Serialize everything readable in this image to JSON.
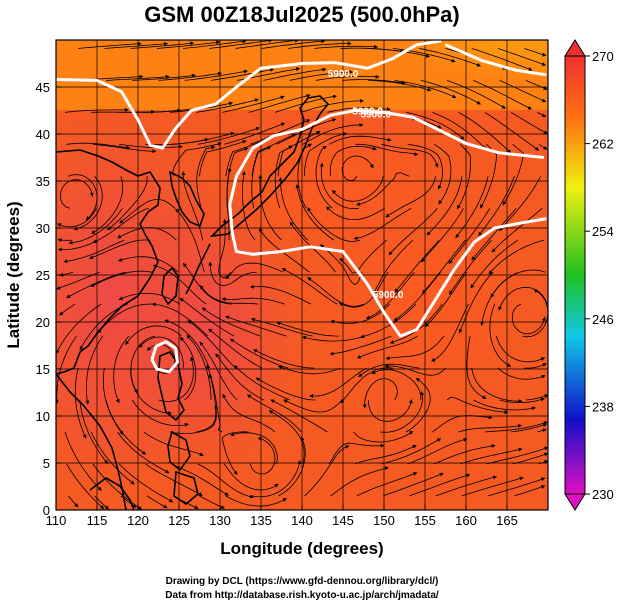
{
  "chart_data": {
    "type": "heatmap",
    "title": "GSM 00Z18Jul2025 (500.0hPa)",
    "xlabel": "Longitude (degrees)",
    "ylabel": "Latitude  (degrees)",
    "xlim": [
      110,
      170
    ],
    "ylim": [
      0,
      50
    ],
    "xticks": [
      110,
      115,
      120,
      125,
      130,
      135,
      140,
      145,
      150,
      155,
      160,
      165
    ],
    "yticks": [
      0,
      5,
      10,
      15,
      20,
      25,
      30,
      35,
      40,
      45
    ],
    "colorbar": {
      "ticks": [
        230,
        238,
        246,
        254,
        262,
        270
      ],
      "range": [
        230,
        270
      ],
      "colors": [
        "#e010c0",
        "#1010c8",
        "#10c8e8",
        "#20c020",
        "#f0f010",
        "#ff7010",
        "#ee3030"
      ]
    },
    "contours": [
      {
        "label": "5900.0",
        "label_pos": [
          145,
          46.5
        ],
        "points": [
          [
            110,
            45.8
          ],
          [
            115,
            45.7
          ],
          [
            118,
            44.5
          ],
          [
            120,
            41.5
          ],
          [
            121.5,
            38.8
          ],
          [
            123,
            38.5
          ],
          [
            124.5,
            40.5
          ],
          [
            126.5,
            42.5
          ],
          [
            129.5,
            43.2
          ],
          [
            132,
            45
          ],
          [
            135,
            47
          ],
          [
            140,
            47.5
          ],
          [
            144,
            47.6
          ],
          [
            148,
            47
          ],
          [
            151,
            48
          ],
          [
            154,
            49.5
          ],
          [
            157,
            49.9
          ]
        ]
      },
      {
        "label": "5900.0",
        "label_pos": [
          149,
          42.2
        ],
        "points": [
          [
            157.5,
            49.5
          ],
          [
            162,
            47.8
          ],
          [
            166,
            46.8
          ],
          [
            169.8,
            46.3
          ]
        ]
      },
      {
        "label": "5900.0",
        "label_pos": [
          148,
          42.5
        ],
        "points": [
          [
            131.5,
            29.5
          ],
          [
            131.2,
            32.5
          ],
          [
            132,
            35.5
          ],
          [
            134,
            38.5
          ],
          [
            136.5,
            39.8
          ],
          [
            140,
            40.5
          ],
          [
            143.5,
            42
          ],
          [
            146.5,
            42.5
          ],
          [
            150,
            42.3
          ],
          [
            153.5,
            41.8
          ],
          [
            157,
            40.3
          ],
          [
            160,
            39
          ],
          [
            164,
            38
          ],
          [
            169.5,
            37.5
          ]
        ]
      },
      {
        "label": "5900.0",
        "label_pos": [
          150.5,
          23
        ],
        "points": [
          [
            131.5,
            29.5
          ],
          [
            132,
            27.5
          ],
          [
            134,
            27.2
          ],
          [
            137.5,
            27.5
          ],
          [
            141,
            28
          ],
          [
            145,
            27.5
          ],
          [
            148,
            24
          ],
          [
            150,
            21
          ],
          [
            152,
            18.5
          ],
          [
            154,
            19.2
          ],
          [
            156,
            22
          ],
          [
            158.5,
            25.5
          ],
          [
            161,
            28.5
          ],
          [
            163.5,
            30
          ],
          [
            166.5,
            30.5
          ],
          [
            169.8,
            31
          ]
        ]
      },
      {
        "label": "",
        "label_pos": null,
        "points": [
          [
            121.7,
            16
          ],
          [
            122.2,
            17.4
          ],
          [
            123.4,
            17.9
          ],
          [
            124.6,
            17.2
          ],
          [
            124.8,
            15.7
          ],
          [
            123.8,
            14.7
          ],
          [
            122.3,
            15
          ],
          [
            121.7,
            16
          ]
        ]
      }
    ]
  },
  "credits": {
    "line1": "Drawing by DCL (https://www.gfd-dennou.org/library/dcl/)",
    "line2": "Data from http://database.rish.kyoto-u.ac.jp/arch/jmadata/"
  }
}
